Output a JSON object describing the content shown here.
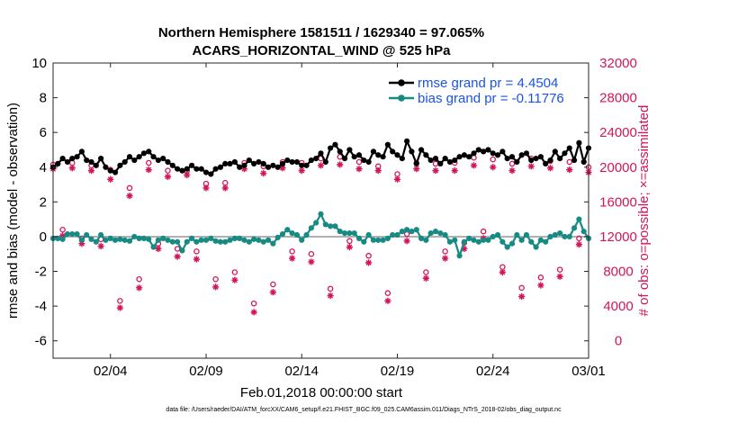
{
  "chart_data": {
    "type": "line",
    "title": "Northern Hemisphere 1581511 / 1629340 = 97.065%",
    "subtitle": "ACARS_HORIZONTAL_WIND @ 525 hPa",
    "xlabel": "Feb.01,2018 00:00:00 start",
    "ylabel": "rmse and bias (model - observation)",
    "y2label": "# of obs: o=possible; ×=assimilated",
    "footnote": "data file: /Users/raeder/DAI/ATM_forcXX/CAM6_setup/f.e21.FHIST_BGC.f09_025.CAM6assim.011/Diags_NTrS_2018-02/obs_diag_output.nc",
    "xlim": [
      0,
      28
    ],
    "ylim": [
      -7,
      10
    ],
    "y2lim": [
      -2000,
      32000
    ],
    "x_ticks": [
      {
        "x": 3,
        "label": "02/04"
      },
      {
        "x": 8,
        "label": "02/09"
      },
      {
        "x": 13,
        "label": "02/14"
      },
      {
        "x": 18,
        "label": "02/19"
      },
      {
        "x": 23,
        "label": "02/24"
      },
      {
        "x": 28,
        "label": "03/01"
      }
    ],
    "y_ticks": [
      {
        "v": 10,
        "label": "10"
      },
      {
        "v": 8,
        "label": "8"
      },
      {
        "v": 6,
        "label": "6"
      },
      {
        "v": 4,
        "label": "4"
      },
      {
        "v": 2,
        "label": "2"
      },
      {
        "v": 0,
        "label": "0"
      },
      {
        "v": -2,
        "label": "-2"
      },
      {
        "v": -4,
        "label": "-4"
      },
      {
        "v": -6,
        "label": "-6"
      }
    ],
    "y2_ticks": [
      {
        "v": 32000,
        "label": "32000"
      },
      {
        "v": 28000,
        "label": "28000"
      },
      {
        "v": 24000,
        "label": "24000"
      },
      {
        "v": 20000,
        "label": "20000"
      },
      {
        "v": 16000,
        "label": "16000"
      },
      {
        "v": 12000,
        "label": "12000"
      },
      {
        "v": 8000,
        "label": "8000"
      },
      {
        "v": 4000,
        "label": "4000"
      },
      {
        "v": 0,
        "label": "0"
      }
    ],
    "series": [
      {
        "name": "rmse",
        "legend": "rmse grand pr = 4.4504",
        "color": "#000000",
        "marker": "circle",
        "x": [
          0.0,
          0.25,
          0.5,
          0.75,
          1.0,
          1.25,
          1.5,
          1.75,
          2.0,
          2.25,
          2.5,
          2.75,
          3.0,
          3.25,
          3.5,
          3.75,
          4.0,
          4.25,
          4.5,
          4.75,
          5.0,
          5.25,
          5.5,
          5.75,
          6.0,
          6.25,
          6.5,
          6.75,
          7.0,
          7.25,
          7.5,
          7.75,
          8.0,
          8.25,
          8.5,
          8.75,
          9.0,
          9.25,
          9.5,
          9.75,
          10.0,
          10.25,
          10.5,
          10.75,
          11.0,
          11.25,
          11.5,
          11.75,
          12.0,
          12.25,
          12.5,
          12.75,
          13.0,
          13.25,
          13.5,
          13.75,
          14.0,
          14.25,
          14.5,
          14.75,
          15.0,
          15.25,
          15.5,
          15.75,
          16.0,
          16.25,
          16.5,
          16.75,
          17.0,
          17.25,
          17.5,
          17.75,
          18.0,
          18.25,
          18.5,
          18.75,
          19.0,
          19.25,
          19.5,
          19.75,
          20.0,
          20.25,
          20.5,
          20.75,
          21.0,
          21.25,
          21.5,
          21.75,
          22.0,
          22.25,
          22.5,
          22.75,
          23.0,
          23.25,
          23.5,
          23.75,
          24.0,
          24.25,
          24.5,
          24.75,
          25.0,
          25.25,
          25.5,
          25.75,
          26.0,
          26.25,
          26.5,
          26.75,
          27.0,
          27.25,
          27.5,
          27.75,
          28.0
        ],
        "values": [
          4.0,
          4.2,
          4.5,
          4.3,
          4.5,
          4.6,
          4.9,
          4.4,
          4.3,
          4.1,
          4.5,
          4.0,
          3.8,
          3.7,
          4.1,
          4.3,
          4.6,
          4.4,
          4.6,
          4.8,
          4.9,
          4.6,
          4.4,
          4.5,
          4.3,
          4.1,
          3.9,
          3.8,
          3.9,
          4.1,
          3.9,
          3.9,
          3.7,
          3.6,
          3.9,
          4.0,
          4.2,
          4.2,
          4.3,
          4.0,
          4.1,
          4.4,
          4.2,
          4.3,
          4.2,
          4.0,
          4.1,
          4.0,
          4.2,
          4.4,
          4.3,
          4.3,
          4.1,
          4.1,
          4.4,
          4.5,
          4.8,
          4.3,
          5.1,
          5.3,
          4.9,
          4.5,
          5.0,
          4.6,
          4.7,
          4.4,
          4.3,
          4.9,
          4.7,
          4.6,
          5.3,
          4.9,
          4.7,
          4.5,
          5.5,
          4.9,
          4.2,
          5.0,
          4.7,
          4.4,
          4.5,
          4.2,
          4.5,
          4.3,
          4.4,
          4.6,
          4.7,
          4.6,
          4.8,
          5.0,
          4.9,
          5.0,
          4.8,
          4.7,
          4.9,
          4.5,
          4.6,
          4.3,
          4.7,
          4.8,
          4.4,
          4.5,
          4.6,
          4.2,
          4.4,
          4.9,
          4.5,
          4.8,
          5.1,
          4.4,
          5.4,
          4.3,
          5.1
        ]
      },
      {
        "name": "bias",
        "legend": "bias grand pr = -0.11776",
        "color": "#178a84",
        "marker": "circle",
        "x": [
          0.0,
          0.25,
          0.5,
          0.75,
          1.0,
          1.25,
          1.5,
          1.75,
          2.0,
          2.25,
          2.5,
          2.75,
          3.0,
          3.25,
          3.5,
          3.75,
          4.0,
          4.25,
          4.5,
          4.75,
          5.0,
          5.25,
          5.5,
          5.75,
          6.0,
          6.25,
          6.5,
          6.75,
          7.0,
          7.25,
          7.5,
          7.75,
          8.0,
          8.25,
          8.5,
          8.75,
          9.0,
          9.25,
          9.5,
          9.75,
          10.0,
          10.25,
          10.5,
          10.75,
          11.0,
          11.25,
          11.5,
          11.75,
          12.0,
          12.25,
          12.5,
          12.75,
          13.0,
          13.25,
          13.5,
          13.75,
          14.0,
          14.25,
          14.5,
          14.75,
          15.0,
          15.25,
          15.5,
          15.75,
          16.0,
          16.25,
          16.5,
          16.75,
          17.0,
          17.25,
          17.5,
          17.75,
          18.0,
          18.25,
          18.5,
          18.75,
          19.0,
          19.25,
          19.5,
          19.75,
          20.0,
          20.25,
          20.5,
          20.75,
          21.0,
          21.25,
          21.5,
          21.75,
          22.0,
          22.25,
          22.5,
          22.75,
          23.0,
          23.25,
          23.5,
          23.75,
          24.0,
          24.25,
          24.5,
          24.75,
          25.0,
          25.25,
          25.5,
          25.75,
          26.0,
          26.25,
          26.5,
          26.75,
          27.0,
          27.25,
          27.5,
          27.75,
          28.0
        ],
        "values": [
          -0.1,
          -0.1,
          -0.15,
          0.15,
          0.15,
          0.15,
          -0.2,
          0.1,
          -0.15,
          -0.3,
          0.1,
          -0.2,
          -0.1,
          -0.2,
          -0.15,
          -0.2,
          -0.25,
          0.0,
          -0.1,
          -0.1,
          -0.15,
          -0.6,
          -0.2,
          -0.1,
          -0.2,
          -0.3,
          -0.3,
          -0.8,
          -0.3,
          -0.1,
          -0.3,
          -0.2,
          -0.2,
          -0.1,
          -0.25,
          -0.3,
          -0.3,
          -0.2,
          -0.1,
          -0.1,
          -0.2,
          -0.3,
          -0.15,
          -0.2,
          -0.3,
          -0.2,
          -0.4,
          -0.05,
          0.15,
          0.4,
          0.2,
          0.1,
          -0.2,
          0.1,
          0.5,
          0.8,
          1.3,
          0.7,
          0.6,
          0.6,
          0.3,
          0.2,
          0.2,
          0.2,
          -0.1,
          -0.3,
          0.1,
          -0.2,
          -0.2,
          -0.2,
          -0.1,
          0.1,
          0.1,
          0.3,
          0.4,
          0.3,
          0.4,
          -0.1,
          -0.2,
          0.2,
          0.3,
          0.2,
          0.1,
          -0.3,
          -0.2,
          -1.1,
          -0.3,
          -0.1,
          -0.2,
          -0.3,
          -0.2,
          -0.2,
          0.0,
          0.1,
          -0.3,
          -0.6,
          -0.4,
          0.1,
          -0.2,
          0.1,
          -0.3,
          -0.6,
          -0.2,
          -0.3,
          0.0,
          0.1,
          0.2,
          0.0,
          0.0,
          0.5,
          1.0,
          0.3,
          -0.1
        ]
      }
    ],
    "obs_possible": {
      "name": "# of obs possible",
      "marker": "o",
      "color": "#d4145a",
      "x": [
        0.0,
        0.5,
        1.0,
        1.5,
        2.0,
        2.5,
        3.0,
        3.5,
        4.0,
        4.5,
        5.0,
        5.5,
        6.0,
        6.5,
        7.0,
        7.5,
        8.0,
        8.5,
        9.0,
        9.5,
        10.0,
        10.5,
        11.0,
        11.5,
        12.0,
        12.5,
        13.0,
        13.5,
        14.0,
        14.5,
        15.0,
        15.5,
        16.0,
        16.5,
        17.0,
        17.5,
        18.0,
        18.5,
        19.0,
        19.5,
        20.0,
        20.5,
        21.0,
        21.5,
        22.0,
        22.5,
        23.0,
        23.5,
        24.0,
        24.5,
        25.0,
        25.5,
        26.0,
        26.5,
        27.0,
        27.5,
        28.0
      ],
      "values": [
        20300,
        12800,
        20500,
        11800,
        20200,
        11700,
        19700,
        4600,
        17600,
        7100,
        20500,
        11200,
        19600,
        10600,
        19600,
        10300,
        18100,
        7100,
        18200,
        7900,
        20500,
        4300,
        20100,
        6500,
        20600,
        10300,
        20500,
        10000,
        21000,
        6000,
        21200,
        11500,
        20600,
        9800,
        20100,
        5500,
        19200,
        12300,
        20500,
        7900,
        20400,
        10300,
        20500,
        11300,
        21100,
        12600,
        20900,
        8500,
        20400,
        6100,
        21000,
        7300,
        20700,
        8200,
        20600,
        11800,
        20000
      ]
    },
    "obs_assimilated": {
      "name": "# of obs assimilated",
      "marker": "*",
      "color": "#d4145a",
      "x": [
        0.0,
        0.5,
        1.0,
        1.5,
        2.0,
        2.5,
        3.0,
        3.5,
        4.0,
        4.5,
        5.0,
        5.5,
        6.0,
        6.5,
        7.0,
        7.5,
        8.0,
        8.5,
        9.0,
        9.5,
        10.0,
        10.5,
        11.0,
        11.5,
        12.0,
        12.5,
        13.0,
        13.5,
        14.0,
        14.5,
        15.0,
        15.5,
        16.0,
        16.5,
        17.0,
        17.5,
        18.0,
        18.5,
        19.0,
        19.5,
        20.0,
        20.5,
        21.0,
        21.5,
        22.0,
        22.5,
        23.0,
        23.5,
        24.0,
        24.5,
        25.0,
        25.5,
        26.0,
        26.5,
        27.0,
        27.5,
        28.0
      ],
      "values": [
        19800,
        12100,
        19900,
        11200,
        19600,
        10900,
        18600,
        3800,
        16700,
        6100,
        19700,
        10600,
        18900,
        9700,
        19100,
        9400,
        17600,
        6200,
        17600,
        7000,
        19800,
        3300,
        19300,
        5600,
        19900,
        9500,
        19600,
        9100,
        20200,
        5200,
        20300,
        10800,
        19800,
        9000,
        19600,
        4600,
        18600,
        11500,
        19800,
        7200,
        19600,
        9500,
        19600,
        10600,
        20200,
        11800,
        20000,
        7900,
        19600,
        5100,
        20100,
        6400,
        19900,
        7400,
        19700,
        11100,
        19400
      ]
    },
    "legend_position": "top-right",
    "zero_line": true
  }
}
